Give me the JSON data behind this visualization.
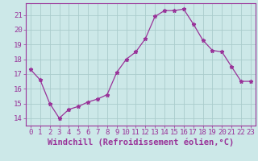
{
  "x": [
    0,
    1,
    2,
    3,
    4,
    5,
    6,
    7,
    8,
    9,
    10,
    11,
    12,
    13,
    14,
    15,
    16,
    17,
    18,
    19,
    20,
    21,
    22,
    23
  ],
  "y": [
    17.3,
    16.6,
    15.0,
    14.0,
    14.6,
    14.8,
    15.1,
    15.3,
    15.6,
    17.1,
    18.0,
    18.5,
    19.4,
    20.9,
    21.3,
    21.3,
    21.4,
    20.4,
    19.3,
    18.6,
    18.5,
    17.5,
    16.5,
    16.5
  ],
  "line_color": "#993399",
  "marker": "*",
  "marker_size": 3.5,
  "bg_color": "#cce8e8",
  "grid_color": "#aacccc",
  "axis_color": "#993399",
  "tick_color": "#993399",
  "xlabel": "Windchill (Refroidissement éolien,°C)",
  "xlim": [
    -0.5,
    23.5
  ],
  "ylim": [
    13.5,
    21.8
  ],
  "yticks": [
    14,
    15,
    16,
    17,
    18,
    19,
    20,
    21
  ],
  "xticks": [
    0,
    1,
    2,
    3,
    4,
    5,
    6,
    7,
    8,
    9,
    10,
    11,
    12,
    13,
    14,
    15,
    16,
    17,
    18,
    19,
    20,
    21,
    22,
    23
  ],
  "tick_fontsize": 6.5,
  "label_fontsize": 7.5
}
